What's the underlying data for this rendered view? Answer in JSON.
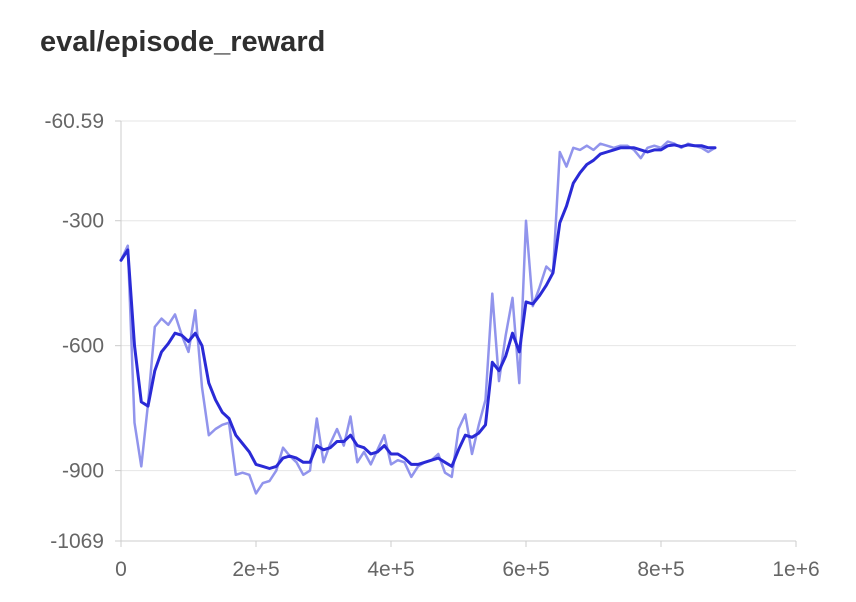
{
  "chart_data": {
    "type": "line",
    "title": "eval/episode_reward",
    "xlabel": "",
    "ylabel": "",
    "xlim": [
      0,
      1000000
    ],
    "ylim": [
      -1069,
      -60.59
    ],
    "x_ticks": [
      0,
      200000,
      400000,
      600000,
      800000,
      1000000
    ],
    "x_tick_labels": [
      "0",
      "2e+5",
      "4e+5",
      "6e+5",
      "8e+5",
      "1e+6"
    ],
    "y_ticks": [
      -60.59,
      -300,
      -600,
      -900,
      -1069
    ],
    "y_tick_labels": [
      "-60.59",
      "-300",
      "-600",
      "-900",
      "-1069"
    ],
    "grid": "horizontal",
    "legend": "none",
    "colors": {
      "raw": "#9194ec",
      "smoothed": "#2a2ad6",
      "grid": "#e6e6e6",
      "axis": "#cccccc",
      "tick_text": "#666666"
    },
    "series": [
      {
        "x": [
          0,
          10000,
          20000,
          30000,
          40000,
          50000,
          60000,
          70000,
          80000,
          90000,
          100000,
          110000,
          120000,
          130000,
          140000,
          150000,
          160000,
          170000,
          180000,
          190000,
          200000,
          210000,
          220000,
          230000,
          240000,
          250000,
          260000,
          270000,
          280000,
          290000,
          300000,
          310000,
          320000,
          330000,
          340000,
          350000,
          360000,
          370000,
          380000,
          390000,
          400000,
          410000,
          420000,
          430000,
          440000,
          450000,
          460000,
          470000,
          480000,
          490000,
          500000,
          510000,
          520000,
          530000,
          540000,
          550000,
          560000,
          570000,
          580000,
          590000,
          600000,
          610000,
          620000,
          630000,
          640000,
          650000,
          660000,
          670000,
          680000,
          690000,
          700000,
          710000,
          720000,
          730000,
          740000,
          750000,
          760000,
          770000,
          780000,
          790000,
          800000,
          810000,
          820000,
          830000,
          840000,
          850000,
          860000,
          870000,
          880000
        ],
        "values": [
          -395,
          -360,
          -785,
          -890,
          -740,
          -555,
          -535,
          -550,
          -525,
          -575,
          -615,
          -515,
          -700,
          -815,
          -800,
          -790,
          -785,
          -910,
          -905,
          -910,
          -955,
          -930,
          -925,
          -900,
          -845,
          -865,
          -880,
          -910,
          -900,
          -775,
          -880,
          -835,
          -800,
          -840,
          -770,
          -880,
          -855,
          -885,
          -850,
          -815,
          -885,
          -875,
          -880,
          -915,
          -890,
          -880,
          -875,
          -860,
          -905,
          -915,
          -800,
          -765,
          -860,
          -790,
          -730,
          -475,
          -685,
          -575,
          -485,
          -690,
          -300,
          -505,
          -460,
          -410,
          -425,
          -135,
          -170,
          -125,
          -130,
          -120,
          -130,
          -115,
          -120,
          -125,
          -120,
          -120,
          -130,
          -150,
          -125,
          -120,
          -125,
          -110,
          -115,
          -125,
          -115,
          -120,
          -125,
          -135,
          -125
        ]
      },
      {
        "x": [
          0,
          10000,
          20000,
          30000,
          40000,
          50000,
          60000,
          70000,
          80000,
          90000,
          100000,
          110000,
          120000,
          130000,
          140000,
          150000,
          160000,
          170000,
          180000,
          190000,
          200000,
          210000,
          220000,
          230000,
          240000,
          250000,
          260000,
          270000,
          280000,
          290000,
          300000,
          310000,
          320000,
          330000,
          340000,
          350000,
          360000,
          370000,
          380000,
          390000,
          400000,
          410000,
          420000,
          430000,
          440000,
          450000,
          460000,
          470000,
          480000,
          490000,
          500000,
          510000,
          520000,
          530000,
          540000,
          550000,
          560000,
          570000,
          580000,
          590000,
          600000,
          610000,
          620000,
          630000,
          640000,
          650000,
          660000,
          670000,
          680000,
          690000,
          700000,
          710000,
          720000,
          730000,
          740000,
          750000,
          760000,
          770000,
          780000,
          790000,
          800000,
          810000,
          820000,
          830000,
          840000,
          850000,
          860000,
          870000,
          880000
        ],
        "values": [
          -395,
          -370,
          -600,
          -735,
          -745,
          -660,
          -615,
          -595,
          -570,
          -575,
          -590,
          -570,
          -600,
          -690,
          -730,
          -760,
          -775,
          -815,
          -835,
          -855,
          -885,
          -890,
          -895,
          -890,
          -870,
          -865,
          -870,
          -880,
          -880,
          -840,
          -850,
          -845,
          -830,
          -830,
          -815,
          -840,
          -845,
          -860,
          -855,
          -840,
          -860,
          -860,
          -870,
          -885,
          -885,
          -880,
          -875,
          -870,
          -880,
          -890,
          -850,
          -815,
          -820,
          -810,
          -790,
          -640,
          -660,
          -625,
          -570,
          -615,
          -495,
          -500,
          -480,
          -455,
          -425,
          -305,
          -265,
          -210,
          -185,
          -165,
          -155,
          -140,
          -135,
          -130,
          -125,
          -125,
          -125,
          -130,
          -135,
          -130,
          -130,
          -120,
          -118,
          -122,
          -118,
          -120,
          -120,
          -125,
          -125
        ]
      }
    ]
  }
}
